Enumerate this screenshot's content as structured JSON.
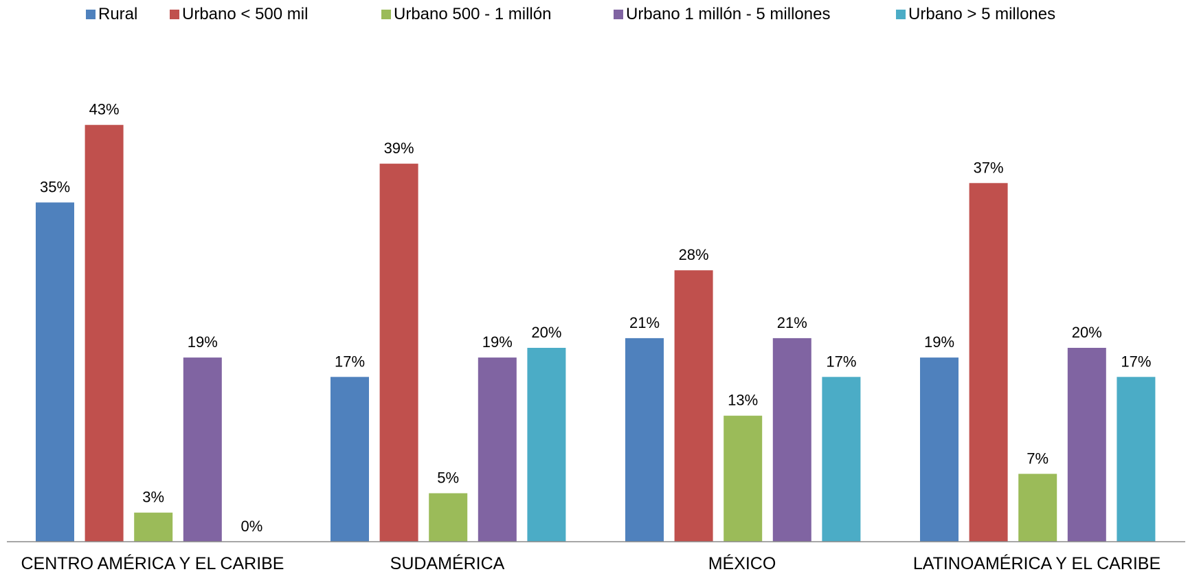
{
  "chart_data": {
    "type": "bar",
    "categories": [
      "CENTRO AMÉRICA Y EL CARIBE",
      "SUDAMÉRICA",
      "MÉXICO",
      "LATINOAMÉRICA Y EL CARIBE"
    ],
    "series": [
      {
        "name": "Rural",
        "color": "#4F81BD",
        "values": [
          35,
          17,
          21,
          19
        ]
      },
      {
        "name": "Urbano < 500 mil",
        "color": "#C0504D",
        "values": [
          43,
          39,
          28,
          37
        ]
      },
      {
        "name": "Urbano 500 - 1 millón",
        "color": "#9BBB59",
        "values": [
          3,
          5,
          13,
          7
        ]
      },
      {
        "name": "Urbano 1 millón - 5 millones",
        "color": "#8064A2",
        "values": [
          19,
          19,
          21,
          20
        ]
      },
      {
        "name": "Urbano > 5 millones",
        "color": "#4BACC6",
        "values": [
          0,
          20,
          17,
          17
        ]
      }
    ],
    "data_labels": [
      [
        "35%",
        "17%",
        "21%",
        "19%"
      ],
      [
        "43%",
        "39%",
        "28%",
        "37%"
      ],
      [
        "3%",
        "5%",
        "13%",
        "7%"
      ],
      [
        "19%",
        "19%",
        "21%",
        "20%"
      ],
      [
        "0%",
        "20%",
        "17%",
        "17%"
      ]
    ],
    "value_suffix": "%",
    "title": "",
    "xlabel": "",
    "ylabel": "",
    "ylim": [
      0,
      43
    ],
    "grid": false,
    "legend": "top",
    "axis_color": "#898989"
  }
}
